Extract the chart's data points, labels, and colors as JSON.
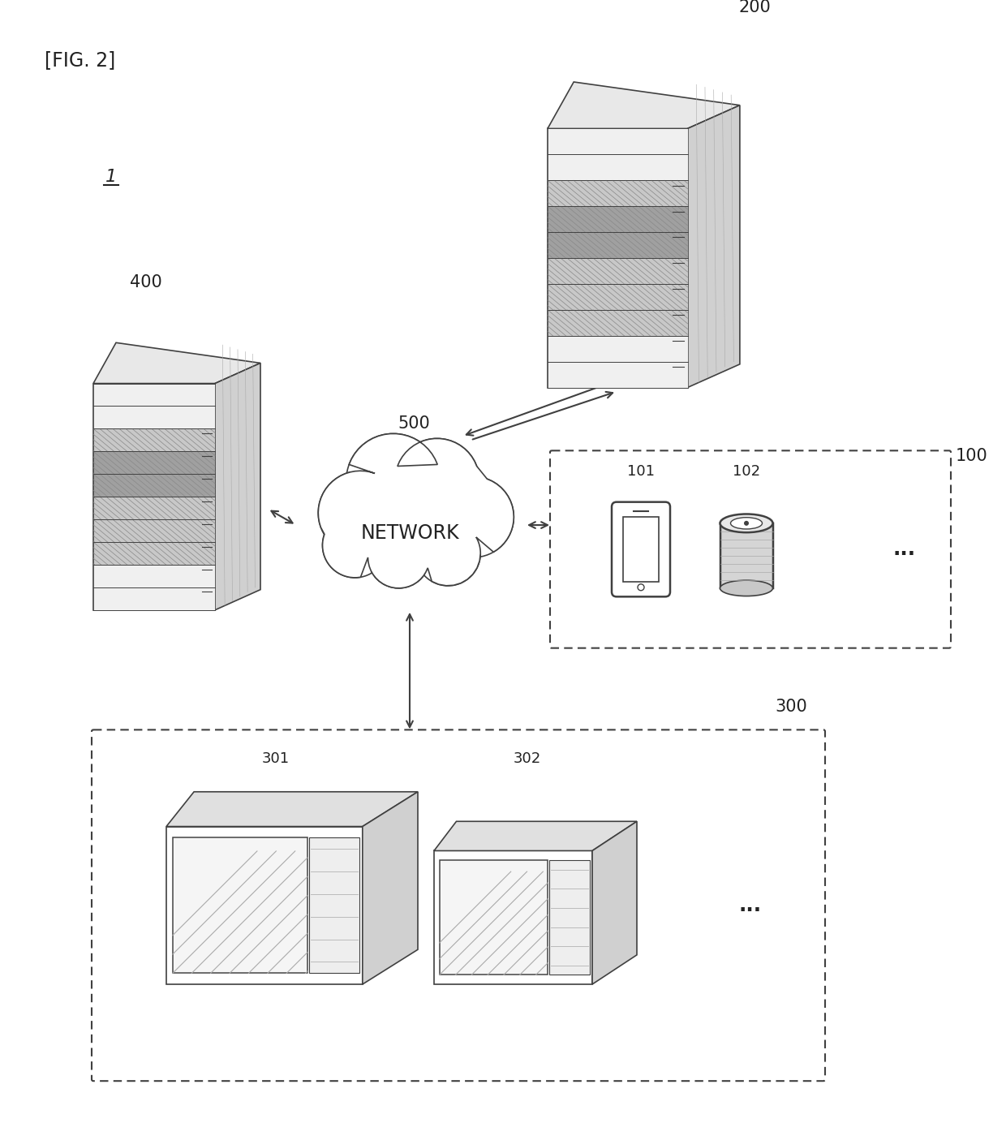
{
  "fig_label": "[FIG. 2]",
  "background_color": "#ffffff",
  "label_1": "1",
  "label_200": "200",
  "label_400": "400",
  "label_500": "500",
  "label_100": "100",
  "label_101": "101",
  "label_102": "102",
  "label_300": "300",
  "label_301": "301",
  "label_302": "302",
  "network_text": "NETWORK",
  "dots": "...",
  "lc": "#404040",
  "tc": "#222222",
  "lw": 1.2
}
